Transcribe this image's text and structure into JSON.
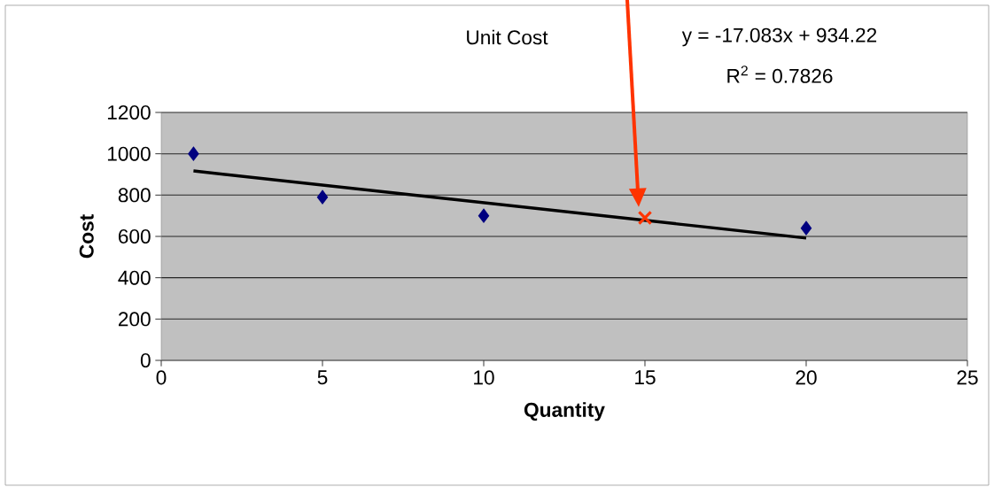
{
  "chart_data": {
    "type": "scatter",
    "title": "Unit Cost",
    "xlabel": "Quantity",
    "ylabel": "Cost",
    "xlim": [
      0,
      25
    ],
    "xticks": [
      0,
      5,
      10,
      15,
      20,
      25
    ],
    "ylim": [
      0,
      1200
    ],
    "yticks": [
      0,
      200,
      400,
      600,
      800,
      1000,
      1200
    ],
    "grid": "y",
    "annotations": [
      "y = -17.083x + 934.22",
      "R$^{2}$ = 0.7826"
    ],
    "series": [
      {
        "color": "#000080",
        "marker": "diamond",
        "x": [
          1,
          5,
          10,
          20
        ],
        "values": [
          1000,
          790,
          700,
          640
        ]
      },
      {
        "type": "line",
        "color": "#000000",
        "marker": "none",
        "x": [
          1,
          20
        ],
        "values": [
          917,
          592
        ]
      },
      {
        "color": "#ff3300",
        "marker": "cross",
        "x": [
          15
        ],
        "values": [
          690
        ]
      }
    ]
  }
}
